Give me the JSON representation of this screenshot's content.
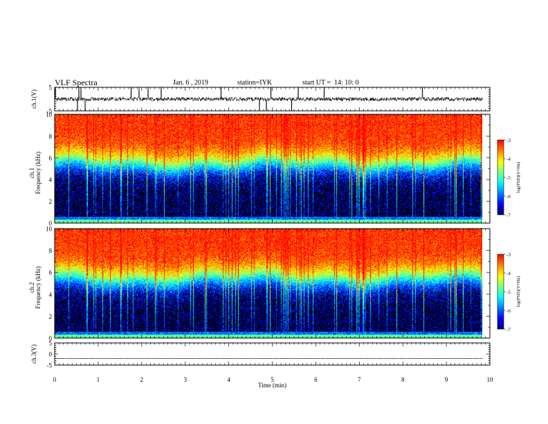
{
  "header": {
    "title": "VLF Spectra",
    "date": "Jan. 6 , 2019",
    "station": "station=IYK",
    "start_ut": "start UT =  14: 10: 0"
  },
  "colors": {
    "colormap": [
      "#000000",
      "#00007f",
      "#0000ff",
      "#007fff",
      "#00ffff",
      "#7fff7f",
      "#ffff00",
      "#ff7f00",
      "#ff0000",
      "#ffffff"
    ]
  },
  "chart_data": [
    {
      "type": "line",
      "ylabel": "ch.1(V)",
      "ylim": [
        -5,
        5
      ],
      "yticks": [
        5,
        -5
      ],
      "xlim": [
        0,
        10
      ],
      "series": [
        {
          "baseline": 0,
          "noise_amplitude": 0.8,
          "spikes_clipped": true
        }
      ]
    },
    {
      "type": "heatmap",
      "ylabel_line1": "ch.1",
      "ylabel_line2": "Frequency (kHz)",
      "ylim": [
        0,
        10
      ],
      "yticks": [
        0,
        2,
        4,
        6,
        8,
        10
      ],
      "xlim": [
        0,
        10
      ],
      "colorbar": {
        "label": "log(PSD)(V²/Hz)",
        "range": [
          -7,
          -3
        ],
        "ticks": [
          -3,
          -4,
          -5,
          -6,
          -7
        ]
      }
    },
    {
      "type": "heatmap",
      "ylabel_line1": "ch.2",
      "ylabel_line2": "Frequency (kHz)",
      "ylim": [
        0,
        10
      ],
      "yticks": [
        0,
        2,
        4,
        6,
        8,
        10
      ],
      "xlim": [
        0,
        10
      ],
      "colorbar": {
        "label": "log(PSD)(V²/Hz)",
        "range": [
          -7,
          -3
        ],
        "ticks": [
          -3,
          -4,
          -5,
          -6,
          -7
        ]
      }
    },
    {
      "type": "line",
      "ylabel": "ch.3(V)",
      "ylim": [
        -5,
        5
      ],
      "yticks": [
        5,
        0,
        -5
      ],
      "xlim": [
        0,
        10
      ],
      "series": [
        {
          "baseline": -2,
          "noise_amplitude": 0.05
        }
      ]
    }
  ],
  "xaxis": {
    "label": "Time (min)",
    "ticks": [
      0,
      1,
      2,
      3,
      4,
      5,
      6,
      7,
      8,
      9,
      10
    ],
    "data_end": 9.83
  }
}
